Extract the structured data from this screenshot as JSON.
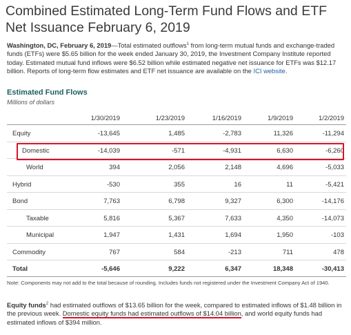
{
  "title": "Combined Estimated Long-Term Fund Flows and ETF Net Issuance February 6, 2019",
  "intro": {
    "dateline": "Washington, DC, February 6, 2019",
    "text_a": "—Total estimated outflows",
    "sup": "1",
    "text_b": " from long-term mutual funds and exchange-traded funds (ETFs) were $5.65 billion for the week ended January 30, 2019, the Investment Company Institute reported today. Estimated mutual fund inflows were $6.52 billion while estimated negative net issuance for ETFs was $12.17 billion. Reports of long-term flow estimates and ETF net issuance are available on the ",
    "link": "ICI website",
    "text_c": "."
  },
  "section": {
    "title": "Estimated Fund Flows",
    "subtitle": "Millions of dollars"
  },
  "table": {
    "columns": [
      "1/30/2019",
      "1/23/2019",
      "1/16/2019",
      "1/9/2019",
      "1/2/2019"
    ],
    "rows": [
      {
        "label": "Equity",
        "values": [
          "-13,645",
          "1,485",
          "-2,783",
          "11,326",
          "-11,294"
        ]
      },
      {
        "label": "Domestic",
        "values": [
          "-14,039",
          "-571",
          "-4,931",
          "6,630",
          "-6,260"
        ]
      },
      {
        "label": "World",
        "values": [
          "394",
          "2,056",
          "2,148",
          "4,696",
          "-5,033"
        ]
      },
      {
        "label": "Hybrid",
        "values": [
          "-530",
          "355",
          "16",
          "11",
          "-5,421"
        ]
      },
      {
        "label": "Bond",
        "values": [
          "7,763",
          "6,798",
          "9,327",
          "6,300",
          "-14,176"
        ]
      },
      {
        "label": "Taxable",
        "values": [
          "5,816",
          "5,367",
          "7,633",
          "4,350",
          "-14,073"
        ]
      },
      {
        "label": "Municipal",
        "values": [
          "1,947",
          "1,431",
          "1,694",
          "1,950",
          "-103"
        ]
      },
      {
        "label": "Commodity",
        "values": [
          "767",
          "584",
          "-213",
          "711",
          "478"
        ]
      },
      {
        "label": "Total",
        "values": [
          "-5,646",
          "9,222",
          "6,347",
          "18,348",
          "-30,413"
        ]
      }
    ]
  },
  "note": "Note: Components may not add to the total because of rounding. Includes funds not registered under the Investment Company Act of 1940.",
  "footer": {
    "bold": "Equity funds",
    "sup": "2",
    "text_a": " had estimated outflows of $13.65 billion for the week, compared to estimated inflows of $1.48 billion in the previous week. ",
    "underlined": "Domestic equity funds had estimated outflows of $14.04 billion",
    "text_b": ", and world equity funds had estimated inflows of $394 million."
  },
  "colors": {
    "highlight": "#d2162b",
    "section_title": "#1d5f63",
    "link": "#1a5f9e"
  }
}
